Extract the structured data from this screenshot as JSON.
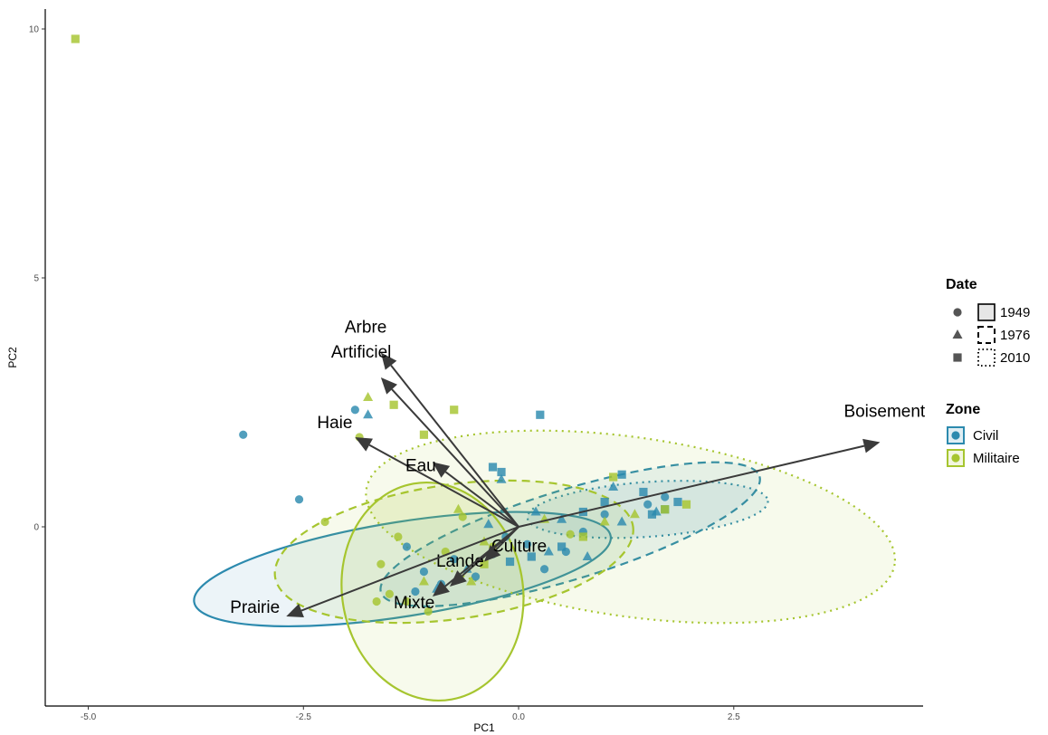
{
  "chart_data": {
    "type": "scatter",
    "title": "",
    "xlabel": "PC1",
    "ylabel": "PC2",
    "xlim": [
      -5.5,
      4.7
    ],
    "ylim": [
      -3.6,
      10.4
    ],
    "xticks": [
      -5.0,
      -2.5,
      0.0,
      2.5
    ],
    "xtick_labels": [
      "-5.0",
      "-2.5",
      "0.0",
      "2.5"
    ],
    "yticks": [
      0,
      5,
      10
    ],
    "ytick_labels": [
      "0",
      "5",
      "10"
    ],
    "grid": false,
    "legend_placement": "right",
    "colors": {
      "Civil": "#2c8aae",
      "Militaire": "#a6c52f",
      "arrow": "#3a3a3a"
    },
    "legends": [
      {
        "title": "Date",
        "entries": [
          {
            "label": "1949",
            "shape": "circle",
            "linetype": "solid"
          },
          {
            "label": "1976",
            "shape": "triangle",
            "linetype": "dashed"
          },
          {
            "label": "2010",
            "shape": "square",
            "linetype": "dotted"
          }
        ]
      },
      {
        "title": "Zone",
        "entries": [
          {
            "label": "Civil",
            "color": "#2c8aae"
          },
          {
            "label": "Militaire",
            "color": "#a6c52f"
          }
        ]
      }
    ],
    "loadings": [
      {
        "name": "Boisement",
        "x": 4.2,
        "y": 1.7
      },
      {
        "name": "Arbre",
        "x": -1.6,
        "y": 3.5
      },
      {
        "name": "Artificiel",
        "x": -1.6,
        "y": 3.0
      },
      {
        "name": "Haie",
        "x": -1.9,
        "y": 1.8
      },
      {
        "name": "Eau",
        "x": -1.0,
        "y": 1.3
      },
      {
        "name": "Culture",
        "x": -0.4,
        "y": -0.7
      },
      {
        "name": "Lande",
        "x": -0.8,
        "y": -1.2
      },
      {
        "name": "Mixte",
        "x": -1.0,
        "y": -1.4
      },
      {
        "name": "Prairie",
        "x": -2.7,
        "y": -1.8
      }
    ],
    "ellipses": [
      {
        "zone": "Civil",
        "date": "1949",
        "cx": -1.35,
        "cy": -0.85,
        "rx": 2.45,
        "ry": 0.95,
        "angle": 9
      },
      {
        "zone": "Civil",
        "date": "1976",
        "cx": 0.6,
        "cy": -0.15,
        "rx": 2.3,
        "ry": 0.9,
        "angle": 17
      },
      {
        "zone": "Civil",
        "date": "2010",
        "cx": 1.5,
        "cy": 0.35,
        "rx": 1.4,
        "ry": 0.55,
        "angle": 4
      },
      {
        "zone": "Militaire",
        "date": "1949",
        "cx": -1.0,
        "cy": -1.3,
        "rx": 1.05,
        "ry": 2.2,
        "angle": 10
      },
      {
        "zone": "Militaire",
        "date": "1976",
        "cx": -0.75,
        "cy": -0.5,
        "rx": 2.1,
        "ry": 1.35,
        "angle": 8
      },
      {
        "zone": "Militaire",
        "date": "2010",
        "cx": 1.3,
        "cy": 0.0,
        "rx": 3.1,
        "ry": 1.8,
        "angle": -8
      }
    ],
    "series": [
      {
        "name": "Civil",
        "points": [
          {
            "x": -3.2,
            "y": 1.85,
            "date": "1949"
          },
          {
            "x": -2.55,
            "y": 0.55,
            "date": "1949"
          },
          {
            "x": -1.9,
            "y": 2.35,
            "date": "1949"
          },
          {
            "x": -1.3,
            "y": -0.4,
            "date": "1949"
          },
          {
            "x": -1.1,
            "y": -0.9,
            "date": "1949"
          },
          {
            "x": -0.9,
            "y": -1.15,
            "date": "1949"
          },
          {
            "x": -0.75,
            "y": -0.65,
            "date": "1949"
          },
          {
            "x": -0.5,
            "y": -1.0,
            "date": "1949"
          },
          {
            "x": -0.3,
            "y": -0.55,
            "date": "1949"
          },
          {
            "x": -0.15,
            "y": -0.2,
            "date": "1949"
          },
          {
            "x": 0.1,
            "y": -0.35,
            "date": "1949"
          },
          {
            "x": 0.3,
            "y": -0.85,
            "date": "1949"
          },
          {
            "x": 0.55,
            "y": -0.5,
            "date": "1949"
          },
          {
            "x": 0.75,
            "y": -0.1,
            "date": "1949"
          },
          {
            "x": 1.0,
            "y": 0.25,
            "date": "1949"
          },
          {
            "x": 1.5,
            "y": 0.45,
            "date": "1949"
          },
          {
            "x": 1.7,
            "y": 0.6,
            "date": "1949"
          },
          {
            "x": -1.2,
            "y": -1.3,
            "date": "1949"
          },
          {
            "x": -1.75,
            "y": 2.25,
            "date": "1976"
          },
          {
            "x": -0.2,
            "y": 0.95,
            "date": "1976"
          },
          {
            "x": -0.6,
            "y": -0.85,
            "date": "1976"
          },
          {
            "x": -0.35,
            "y": 0.05,
            "date": "1976"
          },
          {
            "x": 0.2,
            "y": 0.3,
            "date": "1976"
          },
          {
            "x": 0.5,
            "y": 0.15,
            "date": "1976"
          },
          {
            "x": 0.8,
            "y": -0.6,
            "date": "1976"
          },
          {
            "x": 1.1,
            "y": 0.8,
            "date": "1976"
          },
          {
            "x": 1.2,
            "y": 0.1,
            "date": "1976"
          },
          {
            "x": 1.6,
            "y": 0.3,
            "date": "1976"
          },
          {
            "x": -0.95,
            "y": -1.25,
            "date": "1976"
          },
          {
            "x": 0.35,
            "y": -0.5,
            "date": "1976"
          },
          {
            "x": 0.25,
            "y": 2.25,
            "date": "2010"
          },
          {
            "x": -0.3,
            "y": 1.2,
            "date": "2010"
          },
          {
            "x": -0.2,
            "y": 1.1,
            "date": "2010"
          },
          {
            "x": 1.2,
            "y": 1.05,
            "date": "2010"
          },
          {
            "x": 1.45,
            "y": 0.7,
            "date": "2010"
          },
          {
            "x": 1.55,
            "y": 0.25,
            "date": "2010"
          },
          {
            "x": 1.7,
            "y": 0.35,
            "date": "2010"
          },
          {
            "x": 1.85,
            "y": 0.5,
            "date": "2010"
          },
          {
            "x": 1.0,
            "y": 0.5,
            "date": "2010"
          },
          {
            "x": 0.5,
            "y": -0.4,
            "date": "2010"
          },
          {
            "x": 0.15,
            "y": -0.6,
            "date": "2010"
          },
          {
            "x": -0.1,
            "y": -0.7,
            "date": "2010"
          },
          {
            "x": 0.75,
            "y": 0.3,
            "date": "2010"
          }
        ]
      },
      {
        "name": "Militaire",
        "points": [
          {
            "x": -2.25,
            "y": 0.1,
            "date": "1949"
          },
          {
            "x": -1.85,
            "y": 1.8,
            "date": "1949"
          },
          {
            "x": -1.6,
            "y": -0.75,
            "date": "1949"
          },
          {
            "x": -1.4,
            "y": -0.2,
            "date": "1949"
          },
          {
            "x": -1.5,
            "y": -1.35,
            "date": "1949"
          },
          {
            "x": -1.3,
            "y": -1.5,
            "date": "1949"
          },
          {
            "x": -1.05,
            "y": -1.7,
            "date": "1949"
          },
          {
            "x": -0.85,
            "y": -0.5,
            "date": "1949"
          },
          {
            "x": -1.65,
            "y": -1.5,
            "date": "1949"
          },
          {
            "x": -0.65,
            "y": 0.2,
            "date": "1949"
          },
          {
            "x": 0.6,
            "y": -0.15,
            "date": "1949"
          },
          {
            "x": -0.3,
            "y": -0.4,
            "date": "1949"
          },
          {
            "x": -1.75,
            "y": 2.6,
            "date": "1976"
          },
          {
            "x": -0.7,
            "y": 0.35,
            "date": "1976"
          },
          {
            "x": 0.3,
            "y": 0.15,
            "date": "1976"
          },
          {
            "x": 1.0,
            "y": 0.1,
            "date": "1976"
          },
          {
            "x": 1.35,
            "y": 0.25,
            "date": "1976"
          },
          {
            "x": -1.1,
            "y": -1.1,
            "date": "1976"
          },
          {
            "x": -0.55,
            "y": -1.1,
            "date": "1976"
          },
          {
            "x": -0.4,
            "y": -0.3,
            "date": "1976"
          },
          {
            "x": -5.15,
            "y": 9.8,
            "date": "2010"
          },
          {
            "x": -1.45,
            "y": 2.45,
            "date": "2010"
          },
          {
            "x": -0.75,
            "y": 2.35,
            "date": "2010"
          },
          {
            "x": -1.1,
            "y": 1.85,
            "date": "2010"
          },
          {
            "x": 1.1,
            "y": 1.0,
            "date": "2010"
          },
          {
            "x": 1.7,
            "y": 0.35,
            "date": "2010"
          },
          {
            "x": 1.95,
            "y": 0.45,
            "date": "2010"
          },
          {
            "x": 0.75,
            "y": -0.2,
            "date": "2010"
          },
          {
            "x": -0.4,
            "y": -0.75,
            "date": "2010"
          }
        ]
      }
    ]
  }
}
